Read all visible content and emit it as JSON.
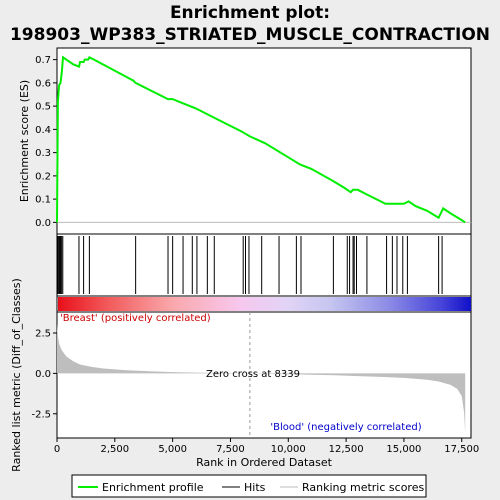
{
  "title_line1": "Enrichment plot:",
  "title_line2": "198903_WP383_STRIATED_MUSCLE_CONTRACTION",
  "colors": {
    "es_line": "#00ee00",
    "hits": "#000000",
    "metric_fill": "#bebebe",
    "positive_label": "#cc0000",
    "negative_label": "#0000cc",
    "zero_line": "#999999"
  },
  "annotations": {
    "positive_label": "'Breast' (positively correlated)",
    "negative_label": "'Blood' (negatively correlated)",
    "zero_cross": "Zero cross at 8339"
  },
  "legend": {
    "enrichment": "Enrichment profile",
    "hits": "Hits",
    "ranking": "Ranking metric scores"
  },
  "chart_data": [
    {
      "type": "line",
      "name": "enrichment-score",
      "ylabel": "Enrichment score (ES)",
      "xlim": [
        0,
        17900
      ],
      "ylim": [
        -0.05,
        0.75
      ],
      "yticks": [
        0.0,
        0.1,
        0.2,
        0.3,
        0.4,
        0.5,
        0.6,
        0.7
      ],
      "ytick_labels": [
        "0.0",
        "0.1",
        "0.2",
        "0.3",
        "0.4",
        "0.5",
        "0.6",
        "0.7"
      ],
      "grid": false,
      "series": [
        {
          "x": [
            0,
            40,
            90,
            150,
            210,
            260,
            400,
            700,
            950,
            1000,
            1150,
            1200,
            1350,
            1400,
            1600,
            3300,
            3400,
            4800,
            5000,
            5500,
            6000,
            7000,
            8000,
            8339,
            9000,
            10000,
            10500,
            11000,
            11900,
            12400,
            12550,
            12700,
            12800,
            12900,
            13000,
            13400,
            13800,
            14200,
            14300,
            14500,
            14600,
            14800,
            15000,
            15200,
            15500,
            16000,
            16500,
            16600,
            16700,
            17000,
            17500,
            17650
          ],
          "y": [
            0.0,
            0.52,
            0.59,
            0.6,
            0.65,
            0.71,
            0.7,
            0.68,
            0.67,
            0.69,
            0.69,
            0.7,
            0.7,
            0.71,
            0.7,
            0.61,
            0.6,
            0.53,
            0.53,
            0.51,
            0.49,
            0.44,
            0.39,
            0.37,
            0.34,
            0.28,
            0.25,
            0.23,
            0.18,
            0.15,
            0.14,
            0.13,
            0.14,
            0.14,
            0.14,
            0.12,
            0.1,
            0.08,
            0.08,
            0.08,
            0.08,
            0.08,
            0.08,
            0.09,
            0.07,
            0.05,
            0.02,
            0.04,
            0.06,
            0.04,
            0.01,
            0.0
          ]
        }
      ]
    },
    {
      "type": "hits",
      "name": "hits",
      "positions": [
        10,
        30,
        60,
        110,
        150,
        200,
        250,
        950,
        1150,
        1400,
        3400,
        4800,
        5000,
        5450,
        5850,
        6050,
        6500,
        6800,
        8050,
        8150,
        8300,
        8850,
        9600,
        10350,
        10550,
        11950,
        12550,
        12650,
        12800,
        12850,
        12950,
        13400,
        14250,
        14500,
        14700,
        14950,
        15150,
        16500,
        16650
      ]
    },
    {
      "type": "area",
      "name": "ranking-metric",
      "ylabel": "Ranked list metric (Diff_of_Classes)",
      "xlabel": "Rank in Ordered Dataset",
      "xlim": [
        0,
        17900
      ],
      "ylim": [
        -4.0,
        3.8
      ],
      "yticks": [
        -2.5,
        0.0,
        2.5
      ],
      "ytick_labels": [
        "-2.5",
        "0.0",
        "2.5"
      ],
      "xticks": [
        0,
        2500,
        5000,
        7500,
        10000,
        12500,
        15000,
        17500
      ],
      "xtick_labels": [
        "0",
        "2,500",
        "5,000",
        "7,500",
        "10,000",
        "12,500",
        "15,000",
        "17,500"
      ],
      "zero_cross": 8339,
      "x": [
        0,
        40,
        100,
        200,
        400,
        700,
        1000,
        1500,
        2000,
        3000,
        4000,
        5000,
        6000,
        7000,
        8339,
        9000,
        10000,
        11000,
        12000,
        13000,
        14000,
        15000,
        16000,
        16500,
        17000,
        17300,
        17500,
        17600,
        17650
      ],
      "y": [
        3.1,
        2.3,
        1.8,
        1.45,
        1.05,
        0.75,
        0.55,
        0.4,
        0.3,
        0.2,
        0.13,
        0.08,
        0.05,
        0.03,
        0.0,
        -0.02,
        -0.05,
        -0.08,
        -0.12,
        -0.17,
        -0.22,
        -0.28,
        -0.4,
        -0.5,
        -0.7,
        -0.95,
        -1.4,
        -2.4,
        -3.7
      ]
    }
  ]
}
